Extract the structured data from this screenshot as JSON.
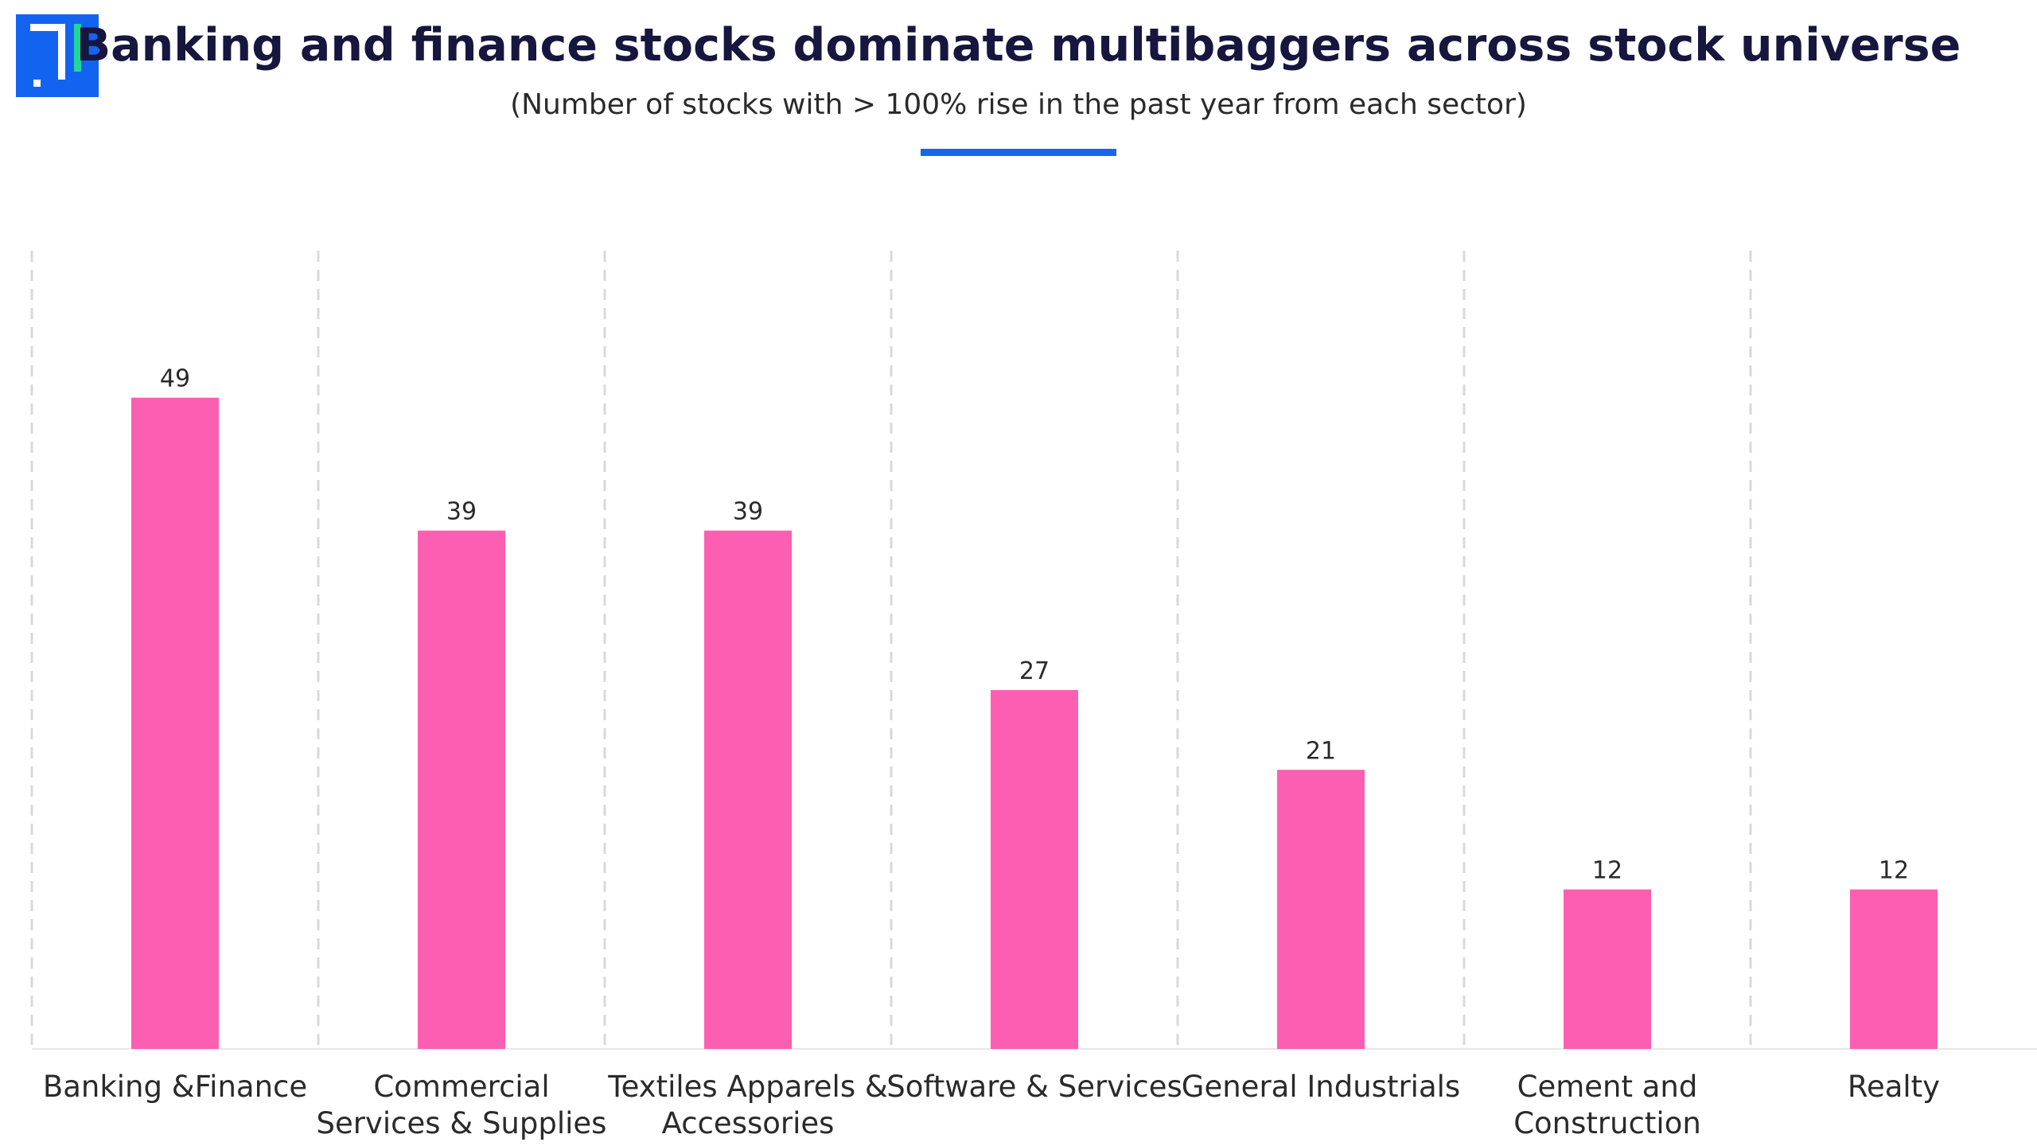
{
  "header": {
    "title": "Banking and finance stocks dominate multibaggers across stock universe",
    "subtitle": "(Number of stocks with > 100% rise in the past year from each sector)",
    "logo_icon": "brand-logo-icon",
    "accent_color": "#1466ef"
  },
  "chart_data": {
    "type": "bar",
    "title": "Banking and finance stocks dominate multibaggers across stock universe",
    "subtitle": "(Number of stocks with > 100% rise in the past year from each sector)",
    "categories": [
      [
        "Banking &Finance"
      ],
      [
        "Commercial",
        "Services & Supplies"
      ],
      [
        "Textiles Apparels &",
        "Accessories"
      ],
      [
        "Software & Services"
      ],
      [
        "General Industrials"
      ],
      [
        "Cement and",
        "Construction"
      ],
      [
        "Realty"
      ]
    ],
    "values": [
      49,
      39,
      39,
      27,
      21,
      12,
      12
    ],
    "xlabel": "",
    "ylabel": "",
    "ylim": [
      0,
      60
    ],
    "grid": "vertical dashed separators",
    "legend": "none",
    "bar_color": "#fc5fb2"
  }
}
